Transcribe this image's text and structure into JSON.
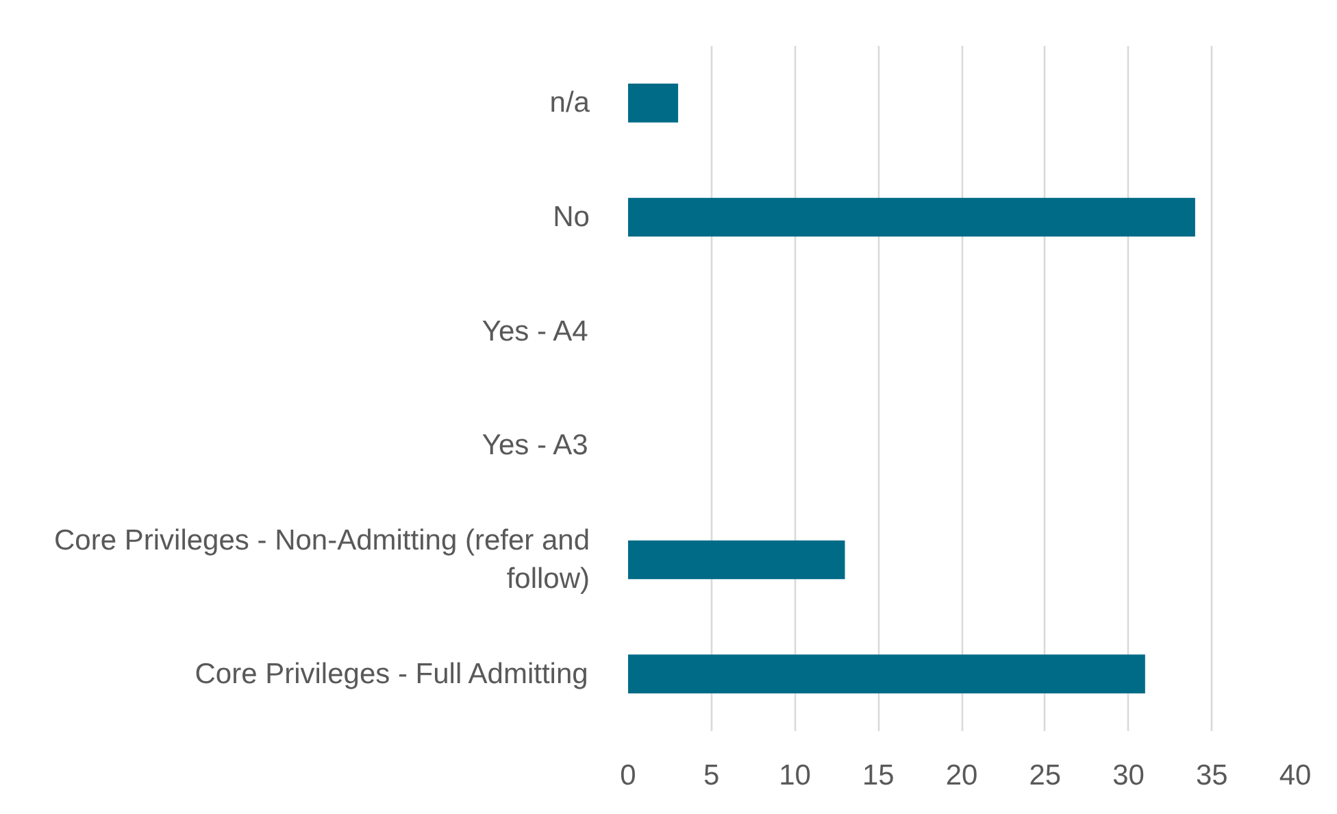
{
  "chart_data": {
    "type": "bar",
    "orientation": "horizontal",
    "categories": [
      "n/a",
      "No",
      "Yes - A4",
      "Yes - A3",
      "Core Privileges - Non-Admitting (refer and follow)",
      "Core Privileges - Full Admitting"
    ],
    "values": [
      3,
      34,
      0,
      0,
      13,
      31
    ],
    "color": "#006b87",
    "xlim": [
      0,
      40
    ],
    "xticks": [
      0,
      5,
      10,
      15,
      20,
      25,
      30,
      35,
      40
    ],
    "grid": "x"
  }
}
